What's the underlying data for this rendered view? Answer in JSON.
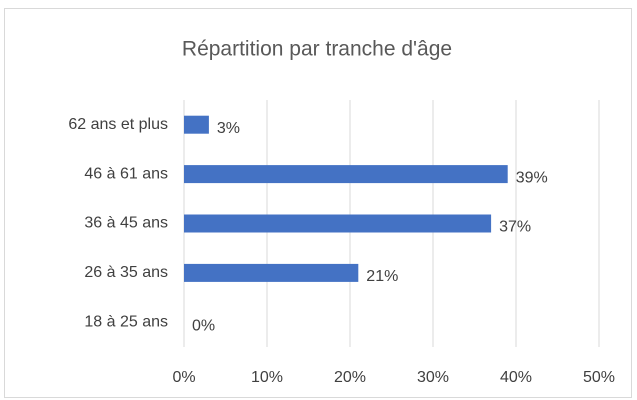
{
  "chart_data": {
    "type": "barh",
    "title": "Répartition par tranche d'âge",
    "categories": [
      "62 ans et plus",
      "46 à 61 ans",
      "36 à 45 ans",
      "26 à 35 ans",
      "18 à 25 ans"
    ],
    "values": [
      3,
      39,
      37,
      21,
      0
    ],
    "value_labels": [
      "3%",
      "39%",
      "37%",
      "21%",
      "0%"
    ],
    "color": "#4472c4",
    "xlim": [
      0,
      50
    ],
    "xticks": [
      {
        "value": 0,
        "label": "0%"
      },
      {
        "value": 10,
        "label": "10%"
      },
      {
        "value": 20,
        "label": "20%"
      },
      {
        "value": 30,
        "label": "30%"
      },
      {
        "value": 40,
        "label": "40%"
      },
      {
        "value": 50,
        "label": "50%"
      }
    ],
    "grid": true
  }
}
